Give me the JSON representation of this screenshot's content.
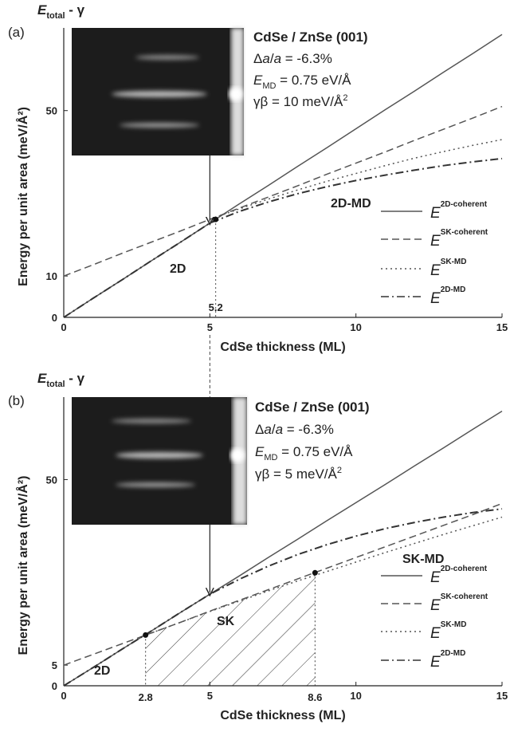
{
  "chart_data": [
    {
      "type": "line",
      "panel_label": "(a)",
      "corner_label": [
        {
          "text": "E",
          "style": "italic"
        },
        {
          "text": "total",
          "style": "sub"
        },
        {
          "text": " - γ"
        }
      ],
      "xlabel": "CdSe thickness (ML)",
      "ylabel": "Energy per unit area (meV/Å²)",
      "xlim": [
        0,
        15
      ],
      "ylim": [
        0,
        70
      ],
      "xticks": [
        0,
        5,
        10,
        15
      ],
      "yticks": [
        0,
        10,
        50
      ],
      "x": [
        0,
        1,
        2,
        3,
        4,
        5,
        6,
        7,
        8,
        9,
        10,
        11,
        12,
        13,
        14,
        15
      ],
      "legend_symbol": "E",
      "legend": "right",
      "series": [
        {
          "name": "2D-coherent",
          "color": "#555555",
          "dash": "solid",
          "values": [
            0,
            4.6,
            9.1,
            13.7,
            18.2,
            22.8,
            27.4,
            31.9,
            36.5,
            41,
            45.6,
            50.2,
            54.7,
            59.3,
            63.8,
            68.4
          ]
        },
        {
          "name": "SK-coherent",
          "color": "#555555",
          "dash": "dashed",
          "values": [
            10,
            12.7,
            15.5,
            18.2,
            20.9,
            23.7,
            26.4,
            29.1,
            31.8,
            34.6,
            37.3,
            40,
            42.8,
            45.5,
            48.2,
            51
          ]
        },
        {
          "name": "SK-MD",
          "color": "#555555",
          "dash": "dotted",
          "values": [
            null,
            null,
            null,
            null,
            null,
            23.7,
            26.2,
            28.6,
            30.8,
            32.9,
            34.8,
            36.7,
            38.5,
            40.1,
            41.6,
            43
          ]
        },
        {
          "name": "2D-MD",
          "color": "#333333",
          "dash": "dashdot",
          "values": [
            0,
            4.6,
            9.1,
            13.7,
            18.2,
            22.8,
            25.6,
            27.9,
            29.9,
            31.6,
            33.1,
            34.4,
            35.6,
            36.7,
            37.6,
            38.4
          ]
        }
      ],
      "markers": [
        {
          "x": 5.2,
          "y": 23.7,
          "label": "5.2"
        }
      ],
      "info": [
        [
          {
            "text": "CdSe / ZnSe (001)",
            "style": "bold"
          }
        ],
        [
          {
            "text": "Δ"
          },
          {
            "text": "a",
            "style": "italic"
          },
          {
            "text": "/"
          },
          {
            "text": "a",
            "style": "italic"
          },
          {
            "text": " = -6.3%"
          }
        ],
        [
          {
            "text": "E",
            "style": "italic"
          },
          {
            "text": "MD",
            "style": "sub"
          },
          {
            "text": " = 0.75 eV/Å"
          }
        ],
        [
          {
            "text": "γβ = 10 meV/Å"
          },
          {
            "text": "2",
            "style": "sup"
          }
        ]
      ],
      "annotations": [
        "2D",
        "2D-MD"
      ]
    },
    {
      "type": "line",
      "panel_label": "(b)",
      "corner_label": [
        {
          "text": "E",
          "style": "italic"
        },
        {
          "text": "total",
          "style": "sub"
        },
        {
          "text": " - γ"
        }
      ],
      "xlabel": "CdSe thickness (ML)",
      "ylabel": "Energy per unit area (meV/Å²)",
      "xlim": [
        0,
        15
      ],
      "ylim": [
        0,
        70
      ],
      "xticks": [
        0,
        5,
        10,
        15
      ],
      "yticks": [
        0,
        5,
        50
      ],
      "x": [
        0,
        1,
        2,
        3,
        4,
        5,
        6,
        7,
        8,
        9,
        10,
        11,
        12,
        13,
        14,
        15
      ],
      "legend_symbol": "E",
      "legend": "right",
      "hatch_series": 1,
      "series": [
        {
          "name": "2D-coherent",
          "color": "#555555",
          "dash": "solid",
          "values": [
            0,
            4.4,
            8.9,
            13.3,
            17.8,
            22.2,
            26.6,
            31.1,
            35.5,
            40,
            44.4,
            48.8,
            53.3,
            57.7,
            62.2,
            66.6
          ]
        },
        {
          "name": "SK-coherent",
          "color": "#555555",
          "dash": "dashed",
          "values": [
            5,
            7.6,
            10.2,
            12.8,
            15.4,
            18.1,
            20.7,
            23.3,
            25.9,
            28.5,
            31.1,
            33.7,
            36.3,
            38.9,
            41.5,
            44.2
          ]
        },
        {
          "name": "SK-MD",
          "color": "#555555",
          "dash": "dotted",
          "values": [
            null,
            null,
            null,
            12.8,
            15.4,
            18,
            20.5,
            23,
            25.4,
            27.7,
            30,
            32.3,
            34.5,
            36.7,
            38.8,
            40.9
          ]
        },
        {
          "name": "2D-MD",
          "color": "#333333",
          "dash": "dashdot",
          "values": [
            0,
            4.4,
            8.9,
            13.3,
            17.8,
            22.2,
            25.8,
            29,
            31.8,
            34.2,
            36.3,
            38.1,
            39.6,
            40.9,
            42,
            42.9
          ]
        }
      ],
      "markers": [
        {
          "x": 2.8,
          "y": 12.3,
          "label": "2.8"
        },
        {
          "x": 8.6,
          "y": 27.4,
          "label": "8.6"
        }
      ],
      "info": [
        [
          {
            "text": "CdSe / ZnSe (001)",
            "style": "bold"
          }
        ],
        [
          {
            "text": "Δ"
          },
          {
            "text": "a",
            "style": "italic"
          },
          {
            "text": "/"
          },
          {
            "text": "a",
            "style": "italic"
          },
          {
            "text": " = -6.3%"
          }
        ],
        [
          {
            "text": "E",
            "style": "italic"
          },
          {
            "text": "MD",
            "style": "sub"
          },
          {
            "text": " = 0.75 eV/Å"
          }
        ],
        [
          {
            "text": "γβ = 5 meV/Å"
          },
          {
            "text": "2",
            "style": "sup"
          }
        ]
      ],
      "annotations": [
        "2D",
        "SK",
        "SK-MD"
      ]
    }
  ]
}
